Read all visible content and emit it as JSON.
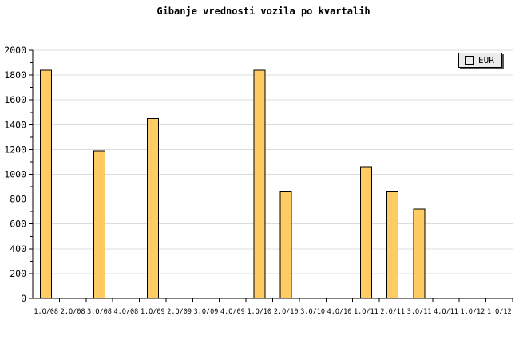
{
  "chart_data": {
    "type": "bar",
    "title": "Gibanje vrednosti vozila po kvartalih",
    "xlabel": "",
    "ylabel": "",
    "categories": [
      "1.Q/08",
      "2.Q/08",
      "3.Q/08",
      "4.Q/08",
      "1.Q/09",
      "2.Q/09",
      "3.Q/09",
      "4.Q/09",
      "1.Q/10",
      "2.Q/10",
      "3.Q/10",
      "4.Q/10",
      "1.Q/11",
      "2.Q/11",
      "3.Q/11",
      "4.Q/11",
      "1.Q/12",
      "1.Q/12"
    ],
    "series": [
      {
        "name": "EUR",
        "values": [
          1840,
          null,
          1190,
          null,
          1450,
          null,
          null,
          null,
          1840,
          860,
          null,
          null,
          1060,
          860,
          720,
          null,
          null,
          null
        ]
      }
    ],
    "ylim": [
      0,
      2000
    ],
    "yticks": [
      0,
      200,
      400,
      600,
      800,
      1000,
      1200,
      1400,
      1600,
      1800,
      2000
    ],
    "ytick_step": 200,
    "yminor_step": 100,
    "grid": true,
    "legend_position": "top-right",
    "colors": {
      "bar_fill": "#FFCB63",
      "bar_border": "#000000",
      "grid": "#DCDCDC",
      "axis": "#000000",
      "text": "#000000",
      "background": "#FFFFFF",
      "legend_bg": "#ECECEC",
      "legend_shadow": "#555555"
    }
  },
  "legend": {
    "label": "EUR"
  }
}
